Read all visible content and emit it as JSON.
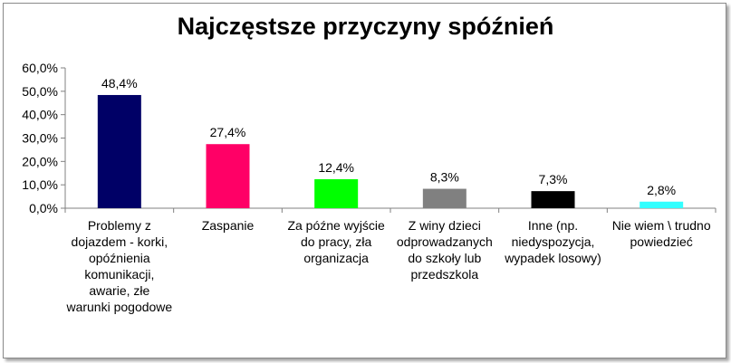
{
  "chart_data": {
    "type": "bar",
    "title": "Najczęstsze przyczyny spóźnień",
    "categories": [
      "Problemy z dojazdem - korki, opóźnienia komunikacji, awarie, złe warunki pogodowe",
      "Zaspanie",
      "Za późne wyjście do pracy, zła organizacja",
      "Z winy dzieci odprowadzanych do szkoły lub przedszkola",
      "Inne (np. niedyspozycja, wypadek losowy)",
      "Nie wiem \\ trudno powiedzieć"
    ],
    "values": [
      48.4,
      27.4,
      12.4,
      8.3,
      7.3,
      2.8
    ],
    "value_labels": [
      "48,4%",
      "27,4%",
      "12,4%",
      "8,3%",
      "7,3%",
      "2,8%"
    ],
    "bar_colors": [
      "#000066",
      "#ff0066",
      "#00ff00",
      "#808080",
      "#000000",
      "#33ffff"
    ],
    "ylim": [
      0,
      60
    ],
    "y_ticks": [
      "0,0%",
      "10,0%",
      "20,0%",
      "30,0%",
      "40,0%",
      "50,0%",
      "60,0%"
    ],
    "grid": false,
    "legend": "none"
  }
}
